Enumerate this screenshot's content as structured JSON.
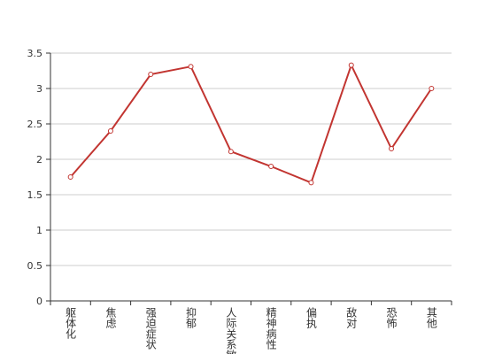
{
  "chart_data": {
    "type": "line",
    "categories": [
      "躯体化",
      "焦虑",
      "强迫症状",
      "抑郁",
      "人际关系敏感",
      "精神病性",
      "偏执",
      "敌对",
      "恐怖",
      "其他"
    ],
    "values": [
      1.75,
      2.4,
      3.2,
      3.31,
      2.11,
      1.9,
      1.67,
      3.33,
      2.15,
      3.0
    ],
    "color": "#c23531",
    "ylim": [
      0,
      3.5
    ],
    "yticks": [
      0,
      0.5,
      1,
      1.5,
      2,
      2.5,
      3,
      3.5
    ],
    "grid": true
  }
}
